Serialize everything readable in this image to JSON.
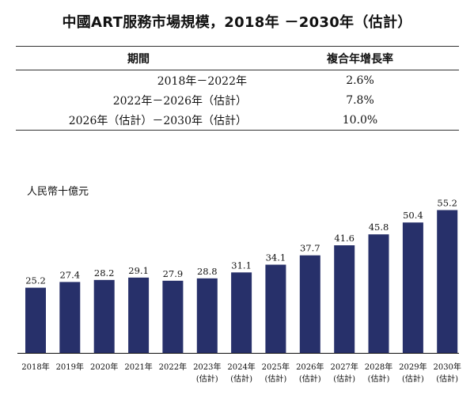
{
  "title": "中國ART服務市場規模，2018年 －2030年（估計）",
  "cagr_table": {
    "headers": [
      "期間",
      "複合年增長率"
    ],
    "rows": [
      {
        "period": "2018年－2022年",
        "rate": "2.6%"
      },
      {
        "period": "2022年－2026年（估計）",
        "rate": "7.8%"
      },
      {
        "period": "2026年（估計）－2030年（估計）",
        "rate": "10.0%"
      }
    ]
  },
  "colors": {
    "bar": "#27306a",
    "axis": "#111111"
  },
  "chart_data": {
    "type": "bar",
    "title": "中國ART服務市場規模，2018年 －2030年（估計）",
    "ylabel": "人民幣十億元",
    "xlabel": "",
    "categories": [
      {
        "year": "2018年",
        "note": ""
      },
      {
        "year": "2019年",
        "note": ""
      },
      {
        "year": "2020年",
        "note": ""
      },
      {
        "year": "2021年",
        "note": ""
      },
      {
        "year": "2022年",
        "note": ""
      },
      {
        "year": "2023年",
        "note": "(估計)"
      },
      {
        "year": "2024年",
        "note": "(估計)"
      },
      {
        "year": "2025年",
        "note": "(估計)"
      },
      {
        "year": "2026年",
        "note": "(估計)"
      },
      {
        "year": "2027年",
        "note": "(估計)"
      },
      {
        "year": "2028年",
        "note": "(估計)"
      },
      {
        "year": "2029年",
        "note": "(估計)"
      },
      {
        "year": "2030年",
        "note": "(估計)"
      }
    ],
    "values": [
      25.2,
      27.4,
      28.2,
      29.1,
      27.9,
      28.8,
      31.1,
      34.1,
      37.7,
      41.6,
      45.8,
      50.4,
      55.2
    ],
    "value_labels": [
      "25.2",
      "27.4",
      "28.2",
      "29.1",
      "27.9",
      "28.8",
      "31.1",
      "34.1",
      "37.7",
      "41.6",
      "45.8",
      "50.4",
      "55.2"
    ],
    "ylim": [
      0,
      60
    ],
    "grid": false,
    "legend": "none"
  }
}
